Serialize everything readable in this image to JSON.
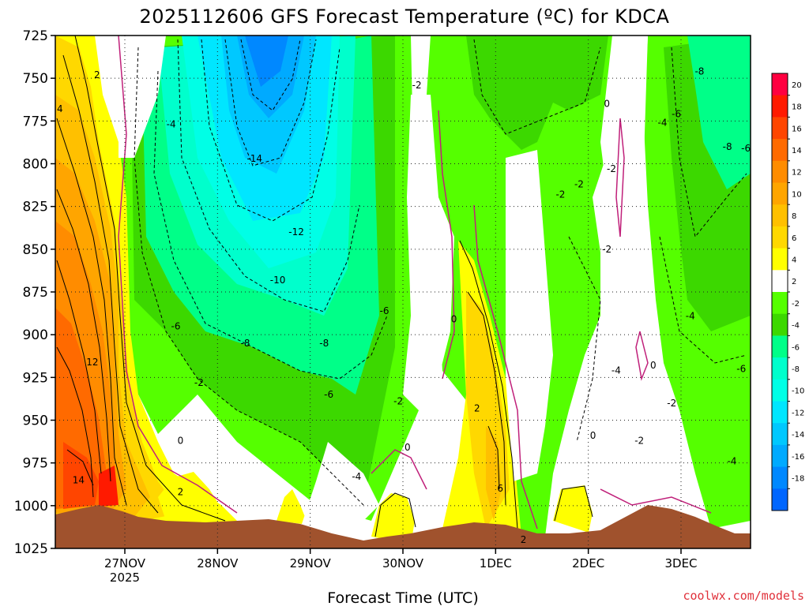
{
  "chart_data": {
    "type": "heatmap",
    "title": "2025112606 GFS Forecast Temperature (ºC) for KDCA",
    "xlabel": "Forecast Time (UTC)",
    "ylabel": "",
    "x_ticks": [
      "27NOV",
      "28NOV",
      "29NOV",
      "30NOV",
      "1DEC",
      "2DEC",
      "3DEC"
    ],
    "x_tick_sublabel": "2025",
    "y_ticks": [
      725,
      750,
      775,
      800,
      825,
      850,
      875,
      900,
      925,
      950,
      975,
      1000,
      1025
    ],
    "ylim": [
      1025,
      725
    ],
    "x_range_days": [
      0,
      7.5
    ],
    "grid": true,
    "colorbar": {
      "labels": [
        20,
        18,
        16,
        14,
        12,
        10,
        8,
        6,
        4,
        2,
        -2,
        -4,
        -6,
        -8,
        -10,
        -12,
        -14,
        -16,
        -18
      ],
      "colors": [
        "#ff0040",
        "#ff1a00",
        "#ff4500",
        "#ff6a00",
        "#ff8c00",
        "#ffa500",
        "#ffc000",
        "#ffd800",
        "#ffff00",
        "#ffffff",
        "#55ff00",
        "#3cd800",
        "#00ff88",
        "#00ffcc",
        "#00ffe6",
        "#00e6ff",
        "#00c8ff",
        "#00aaff",
        "#0088ff",
        "#0066ff"
      ]
    },
    "contour_labels": [
      {
        "text": "2",
        "x": 0.45,
        "p": 748
      },
      {
        "text": "4",
        "x": 0.05,
        "p": 768
      },
      {
        "text": "12",
        "x": 0.4,
        "p": 916
      },
      {
        "text": "14",
        "x": 0.25,
        "p": 985
      },
      {
        "text": "-4",
        "x": 1.25,
        "p": 777
      },
      {
        "text": "-14",
        "x": 2.15,
        "p": 797
      },
      {
        "text": "-12",
        "x": 2.6,
        "p": 840
      },
      {
        "text": "-10",
        "x": 2.4,
        "p": 868
      },
      {
        "text": "-6",
        "x": 1.3,
        "p": 895
      },
      {
        "text": "-8",
        "x": 2.05,
        "p": 905
      },
      {
        "text": "-8",
        "x": 2.9,
        "p": 905
      },
      {
        "text": "-6",
        "x": 2.95,
        "p": 935
      },
      {
        "text": "-6",
        "x": 3.55,
        "p": 886
      },
      {
        "text": "-2",
        "x": 1.55,
        "p": 928
      },
      {
        "text": "0",
        "x": 1.35,
        "p": 962
      },
      {
        "text": "2",
        "x": 1.35,
        "p": 992
      },
      {
        "text": "-4",
        "x": 3.25,
        "p": 983
      },
      {
        "text": "-2",
        "x": 3.7,
        "p": 939
      },
      {
        "text": "0",
        "x": 3.8,
        "p": 966
      },
      {
        "text": "-2",
        "x": 3.9,
        "p": 754
      },
      {
        "text": "0",
        "x": 4.3,
        "p": 891
      },
      {
        "text": "2",
        "x": 4.55,
        "p": 943
      },
      {
        "text": "6",
        "x": 4.8,
        "p": 990
      },
      {
        "text": "-2",
        "x": 5.45,
        "p": 818
      },
      {
        "text": "-2",
        "x": 5.65,
        "p": 812
      },
      {
        "text": "-2",
        "x": 6.0,
        "p": 803
      },
      {
        "text": "0",
        "x": 5.95,
        "p": 765
      },
      {
        "text": "-2",
        "x": 5.95,
        "p": 850
      },
      {
        "text": "-4",
        "x": 6.05,
        "p": 921
      },
      {
        "text": "0",
        "x": 5.8,
        "p": 959
      },
      {
        "text": "-2",
        "x": 6.3,
        "p": 962
      },
      {
        "text": "2",
        "x": 5.05,
        "p": 1020
      },
      {
        "text": "0",
        "x": 6.45,
        "p": 918
      },
      {
        "text": "-2",
        "x": 6.65,
        "p": 940
      },
      {
        "text": "-4",
        "x": 6.55,
        "p": 776
      },
      {
        "text": "-6",
        "x": 6.7,
        "p": 771
      },
      {
        "text": "-8",
        "x": 6.95,
        "p": 746
      },
      {
        "text": "-8",
        "x": 7.25,
        "p": 790
      },
      {
        "text": "-6",
        "x": 7.45,
        "p": 791
      },
      {
        "text": "-4",
        "x": 6.85,
        "p": 889
      },
      {
        "text": "-6",
        "x": 7.4,
        "p": 920
      },
      {
        "text": "-4",
        "x": 7.3,
        "p": 974
      }
    ]
  },
  "credit": "coolwx.com/models"
}
